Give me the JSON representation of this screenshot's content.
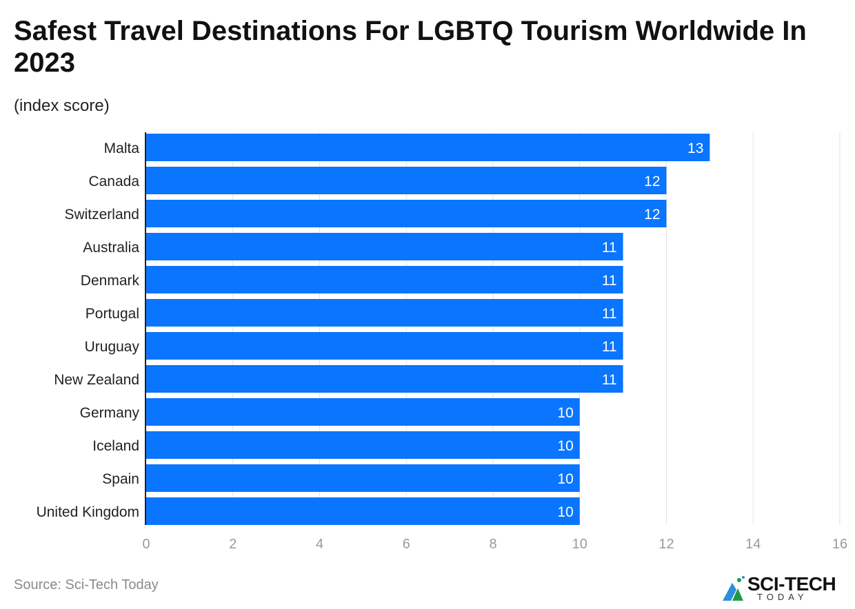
{
  "chart_data": {
    "type": "bar",
    "orientation": "horizontal",
    "title": "Safest Travel Destinations For LGBTQ Tourism Worldwide In 2023",
    "subtitle": "(index score)",
    "categories": [
      "Malta",
      "Canada",
      "Switzerland",
      "Australia",
      "Denmark",
      "Portugal",
      "Uruguay",
      "New Zealand",
      "Germany",
      "Iceland",
      "Spain",
      "United Kingdom"
    ],
    "values": [
      13,
      12,
      12,
      11,
      11,
      11,
      11,
      11,
      10,
      10,
      10,
      10
    ],
    "xlim": [
      0,
      16
    ],
    "xticks": [
      0,
      2,
      4,
      6,
      8,
      10,
      12,
      14,
      16
    ],
    "grid": true,
    "bar_color": "#0a75ff",
    "xlabel": "",
    "ylabel": ""
  },
  "source": "Source: Sci-Tech Today",
  "logo": {
    "main": "SCI-TECH",
    "sub": "TODAY"
  }
}
